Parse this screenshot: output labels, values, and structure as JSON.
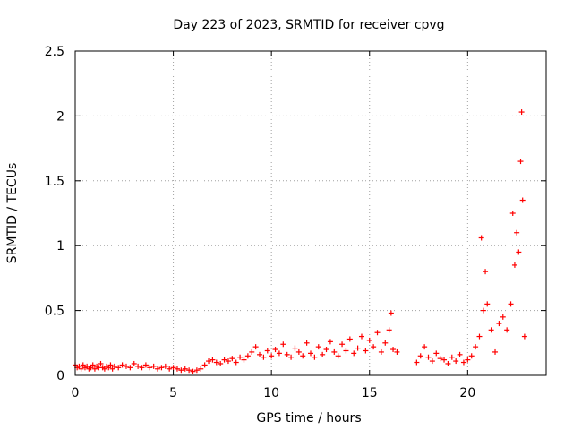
{
  "chart_data": {
    "type": "scatter",
    "title": "Day 223 of 2023, SRMTID for receiver cpvg",
    "xlabel": "GPS time / hours",
    "ylabel": "SRMTID / TECUs",
    "xlim": [
      0,
      24
    ],
    "ylim": [
      0,
      2.5
    ],
    "xticks": [
      0,
      5,
      10,
      15,
      20
    ],
    "yticks": [
      0,
      0.5,
      1,
      1.5,
      2,
      2.5
    ],
    "xtick_labels": [
      "0",
      "5",
      "10",
      "15",
      "20"
    ],
    "ytick_labels": [
      "0",
      "0.5",
      "1",
      "1.5",
      "2",
      "2.5"
    ],
    "grid": true,
    "marker": "+",
    "series": [
      {
        "name": "SRMTID",
        "color": "#ff0000",
        "x": [
          0.0,
          0.1,
          0.2,
          0.3,
          0.4,
          0.5,
          0.6,
          0.7,
          0.8,
          0.9,
          1.0,
          1.1,
          1.2,
          1.3,
          1.4,
          1.5,
          1.6,
          1.7,
          1.8,
          1.9,
          2.0,
          2.2,
          2.4,
          2.6,
          2.8,
          3.0,
          3.2,
          3.4,
          3.6,
          3.8,
          4.0,
          4.2,
          4.4,
          4.6,
          4.8,
          5.0,
          5.2,
          5.4,
          5.6,
          5.8,
          6.0,
          6.2,
          6.4,
          6.6,
          6.8,
          7.0,
          7.2,
          7.4,
          7.6,
          7.8,
          8.0,
          8.2,
          8.4,
          8.6,
          8.8,
          9.0,
          9.2,
          9.4,
          9.6,
          9.8,
          10.0,
          10.2,
          10.4,
          10.6,
          10.8,
          11.0,
          11.2,
          11.4,
          11.6,
          11.8,
          12.0,
          12.2,
          12.4,
          12.6,
          12.8,
          13.0,
          13.2,
          13.4,
          13.6,
          13.8,
          14.0,
          14.2,
          14.4,
          14.6,
          14.8,
          15.0,
          15.2,
          15.4,
          15.6,
          15.8,
          16.0,
          16.1,
          16.2,
          16.4,
          17.4,
          17.6,
          17.8,
          18.0,
          18.2,
          18.4,
          18.6,
          18.8,
          19.0,
          19.2,
          19.4,
          19.6,
          19.8,
          20.0,
          20.2,
          20.4,
          20.6,
          20.7,
          20.8,
          20.9,
          21.0,
          21.2,
          21.4,
          21.6,
          21.8,
          22.0,
          22.2,
          22.3,
          22.4,
          22.5,
          22.6,
          22.7,
          22.75,
          22.8,
          22.9
        ],
        "y": [
          0.08,
          0.06,
          0.07,
          0.05,
          0.08,
          0.06,
          0.07,
          0.05,
          0.06,
          0.08,
          0.05,
          0.07,
          0.06,
          0.09,
          0.06,
          0.05,
          0.07,
          0.06,
          0.08,
          0.05,
          0.07,
          0.06,
          0.08,
          0.07,
          0.06,
          0.09,
          0.07,
          0.06,
          0.08,
          0.06,
          0.07,
          0.05,
          0.06,
          0.07,
          0.05,
          0.06,
          0.05,
          0.04,
          0.05,
          0.04,
          0.03,
          0.04,
          0.05,
          0.08,
          0.11,
          0.12,
          0.1,
          0.09,
          0.12,
          0.11,
          0.13,
          0.1,
          0.14,
          0.12,
          0.15,
          0.18,
          0.22,
          0.16,
          0.14,
          0.19,
          0.15,
          0.2,
          0.17,
          0.24,
          0.16,
          0.14,
          0.21,
          0.18,
          0.15,
          0.25,
          0.17,
          0.14,
          0.22,
          0.16,
          0.2,
          0.26,
          0.18,
          0.15,
          0.24,
          0.19,
          0.28,
          0.17,
          0.21,
          0.3,
          0.19,
          0.27,
          0.22,
          0.33,
          0.18,
          0.25,
          0.35,
          0.48,
          0.2,
          0.18,
          0.1,
          0.15,
          0.22,
          0.14,
          0.11,
          0.17,
          0.13,
          0.12,
          0.09,
          0.14,
          0.11,
          0.16,
          0.1,
          0.12,
          0.15,
          0.22,
          0.3,
          1.06,
          0.5,
          0.8,
          0.55,
          0.35,
          0.18,
          0.4,
          0.45,
          0.35,
          0.55,
          1.25,
          0.85,
          1.1,
          0.95,
          1.65,
          2.03,
          1.35,
          0.3
        ]
      }
    ]
  }
}
